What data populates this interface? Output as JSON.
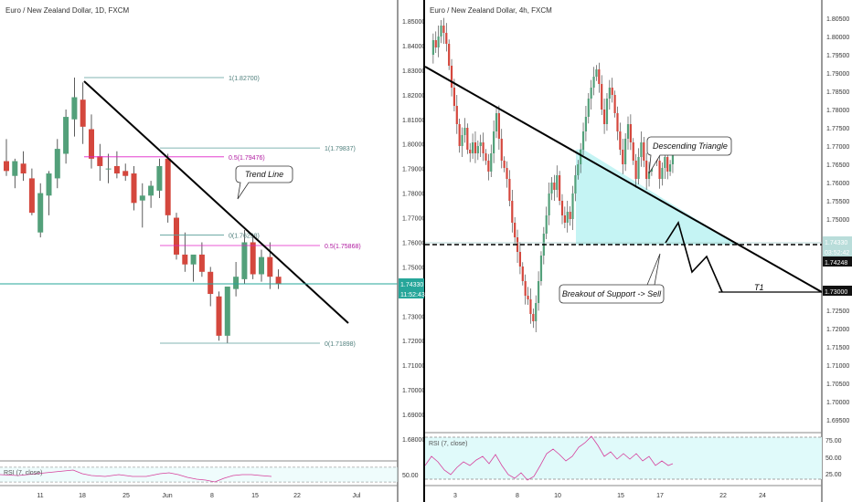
{
  "left_panel": {
    "title": "Euro / New Zealand Dollar, 1D, FXCM",
    "price_ticks": [
      "1.85000",
      "1.84000",
      "1.83000",
      "1.82000",
      "1.81000",
      "1.80000",
      "1.79000",
      "1.78000",
      "1.77000",
      "1.76000",
      "1.75000",
      "1.74000",
      "1.73000",
      "1.72000",
      "1.71000",
      "1.70000",
      "1.69000",
      "1.68000"
    ],
    "x_ticks": [
      "11",
      "18",
      "25",
      "Jun",
      "8",
      "15",
      "22",
      "Jul"
    ],
    "price_badge": "1.74330",
    "countdown_badge": "11:52:43",
    "fib_labels": [
      "1(1.82700)",
      "1(1.79837)",
      "0.5(1.79476)",
      "0(1.76298)",
      "0.5(1.75868)",
      "0(1.71898)"
    ],
    "callout": "Trend Line",
    "rsi_label": "RSI (7, close)",
    "rsi_tick": "50.00",
    "colors": {
      "bull": "#53a07a",
      "bear": "#d4473d",
      "fib_teal": "#5a9e9a",
      "fib_magenta": "#e020c8",
      "price_line": "#26a69a"
    }
  },
  "right_panel": {
    "title": "Euro / New Zealand Dollar, 4h, FXCM",
    "price_ticks": [
      "1.80500",
      "1.80000",
      "1.79500",
      "1.79000",
      "1.78500",
      "1.78000",
      "1.77500",
      "1.77000",
      "1.76500",
      "1.76000",
      "1.75500",
      "1.75000",
      "1.74500",
      "1.74000",
      "1.73500",
      "1.73000",
      "1.72500",
      "1.72000",
      "1.71500",
      "1.71000",
      "1.70500",
      "1.70000",
      "1.69500"
    ],
    "x_ticks": [
      "3",
      "8",
      "10",
      "15",
      "17",
      "22",
      "24"
    ],
    "price_badge": "1.74330",
    "countdown_badge": "03:52:42",
    "support_badge": "1.74248",
    "target_badge": "1.73000",
    "callouts": [
      "Descending Triangle",
      "Breakout of Support -> Sell"
    ],
    "target_label": "T1",
    "rsi_label": "RSI (7, close)",
    "rsi_ticks": [
      "75.00",
      "50.00",
      "25.00"
    ],
    "colors": {
      "bull": "#53a07a",
      "bear": "#d4473d",
      "triangle_fill": "#b2f0f0",
      "rsi_fill": "#e0fafa",
      "rsi_line": "#d6409c"
    }
  },
  "chart_data": [
    {
      "type": "candlestick",
      "title": "Euro / New Zealand Dollar, 1D, FXCM",
      "y_range": [
        1.68,
        1.855
      ],
      "x_labels": [
        "11",
        "18",
        "25",
        "Jun",
        "8",
        "15",
        "22",
        "Jul"
      ],
      "candles": [
        {
          "o": 1.793,
          "h": 1.802,
          "l": 1.787,
          "c": 1.789
        },
        {
          "o": 1.787,
          "h": 1.794,
          "l": 1.782,
          "c": 1.793
        },
        {
          "o": 1.792,
          "h": 1.797,
          "l": 1.785,
          "c": 1.788
        },
        {
          "o": 1.786,
          "h": 1.79,
          "l": 1.771,
          "c": 1.772
        },
        {
          "o": 1.764,
          "h": 1.784,
          "l": 1.762,
          "c": 1.78
        },
        {
          "o": 1.779,
          "h": 1.789,
          "l": 1.771,
          "c": 1.788
        },
        {
          "o": 1.786,
          "h": 1.802,
          "l": 1.782,
          "c": 1.798
        },
        {
          "o": 1.796,
          "h": 1.814,
          "l": 1.792,
          "c": 1.811
        },
        {
          "o": 1.81,
          "h": 1.827,
          "l": 1.803,
          "c": 1.819
        },
        {
          "o": 1.818,
          "h": 1.825,
          "l": 1.8,
          "c": 1.807
        },
        {
          "o": 1.806,
          "h": 1.812,
          "l": 1.79,
          "c": 1.794
        },
        {
          "o": 1.795,
          "h": 1.8,
          "l": 1.785,
          "c": 1.791
        },
        {
          "o": 1.79,
          "h": 1.796,
          "l": 1.784,
          "c": 1.79
        },
        {
          "o": 1.791,
          "h": 1.797,
          "l": 1.786,
          "c": 1.788
        },
        {
          "o": 1.789,
          "h": 1.792,
          "l": 1.785,
          "c": 1.787
        },
        {
          "o": 1.788,
          "h": 1.791,
          "l": 1.773,
          "c": 1.776
        },
        {
          "o": 1.777,
          "h": 1.784,
          "l": 1.766,
          "c": 1.779
        },
        {
          "o": 1.779,
          "h": 1.785,
          "l": 1.774,
          "c": 1.783
        },
        {
          "o": 1.781,
          "h": 1.794,
          "l": 1.778,
          "c": 1.791
        },
        {
          "o": 1.794,
          "h": 1.796,
          "l": 1.768,
          "c": 1.771
        },
        {
          "o": 1.77,
          "h": 1.772,
          "l": 1.753,
          "c": 1.755
        },
        {
          "o": 1.755,
          "h": 1.764,
          "l": 1.748,
          "c": 1.751
        },
        {
          "o": 1.751,
          "h": 1.755,
          "l": 1.744,
          "c": 1.755
        },
        {
          "o": 1.755,
          "h": 1.76,
          "l": 1.746,
          "c": 1.748
        },
        {
          "o": 1.748,
          "h": 1.75,
          "l": 1.734,
          "c": 1.739
        },
        {
          "o": 1.738,
          "h": 1.74,
          "l": 1.72,
          "c": 1.722
        },
        {
          "o": 1.722,
          "h": 1.742,
          "l": 1.719,
          "c": 1.742
        },
        {
          "o": 1.741,
          "h": 1.752,
          "l": 1.738,
          "c": 1.746
        },
        {
          "o": 1.745,
          "h": 1.765,
          "l": 1.743,
          "c": 1.76
        },
        {
          "o": 1.76,
          "h": 1.762,
          "l": 1.745,
          "c": 1.747
        },
        {
          "o": 1.747,
          "h": 1.757,
          "l": 1.744,
          "c": 1.754
        },
        {
          "o": 1.754,
          "h": 1.76,
          "l": 1.741,
          "c": 1.746
        },
        {
          "o": 1.746,
          "h": 1.749,
          "l": 1.741,
          "c": 1.743
        }
      ],
      "trend_line": [
        {
          "price": 1.827
        },
        {
          "price": 1.727
        }
      ],
      "fib_levels": [
        1.827,
        1.79837,
        1.79476,
        1.76298,
        1.75868,
        1.71898
      ]
    },
    {
      "type": "candlestick",
      "title": "Euro / New Zealand Dollar, 4h, FXCM",
      "y_range": [
        1.6915,
        1.8075
      ],
      "x_labels": [
        "3",
        "8",
        "10",
        "15",
        "17",
        "22",
        "24"
      ],
      "support_level": 1.74248,
      "target_level": 1.73,
      "descending_triangle": {
        "top_start": 1.7635,
        "top_end": 1.7425,
        "base": 1.74248
      },
      "rsi_range": [
        0,
        100
      ],
      "rsi_levels": [
        75,
        50,
        25
      ]
    }
  ]
}
